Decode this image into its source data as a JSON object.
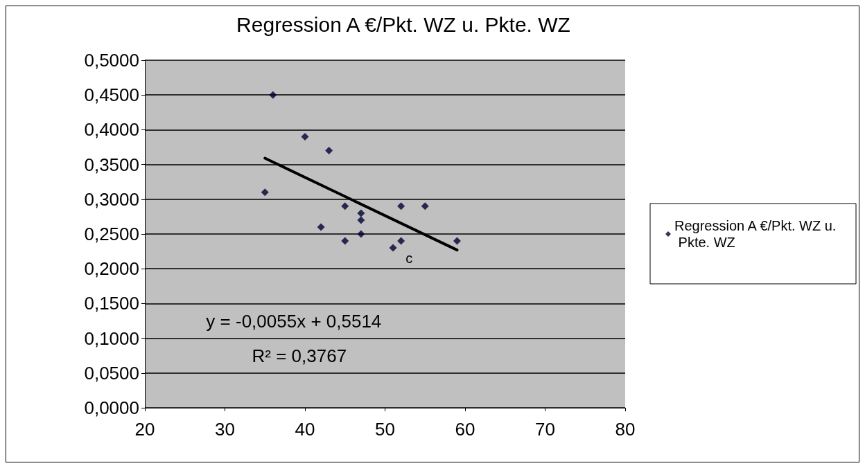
{
  "chart_data": {
    "type": "scatter",
    "title": "Regression A €/Pkt. WZ u. Pkte. WZ",
    "series": [
      {
        "name": "Regression A €/Pkt. WZ u. Pkte. WZ",
        "color": "#000033",
        "marker": "diamond",
        "x": [
          36,
          40,
          43,
          35,
          45,
          52,
          55,
          47,
          47,
          42,
          47,
          45,
          52,
          51,
          59
        ],
        "values": [
          0.45,
          0.39,
          0.37,
          0.31,
          0.29,
          0.29,
          0.29,
          0.28,
          0.27,
          0.26,
          0.25,
          0.24,
          0.24,
          0.23,
          0.24
        ]
      },
      {
        "type": "line",
        "color": "#000000",
        "x": [
          35,
          59
        ],
        "values": [
          0.359,
          0.227
        ]
      }
    ],
    "xlim": [
      20,
      80
    ],
    "xticks": [
      20,
      30,
      40,
      50,
      60,
      70,
      80
    ],
    "ylim": [
      0,
      0.5
    ],
    "yticks": [
      {
        "value": 0,
        "label": "0,0000"
      },
      {
        "value": 0.05,
        "label": "0,0500"
      },
      {
        "value": 0.1,
        "label": "0,1000"
      },
      {
        "value": 0.15,
        "label": "0,1500"
      },
      {
        "value": 0.2,
        "label": "0,2000"
      },
      {
        "value": 0.25,
        "label": "0,2500"
      },
      {
        "value": 0.3,
        "label": "0,3000"
      },
      {
        "value": 0.35,
        "label": "0,3500"
      },
      {
        "value": 0.4,
        "label": "0,4000"
      },
      {
        "value": 0.45,
        "label": "0,4500"
      },
      {
        "value": 0.5,
        "label": "0,5000"
      }
    ],
    "grid": "y",
    "legend": "right",
    "annotations": [
      "y = -0,0055x + 0,5514",
      "R² = 0,3767",
      "c"
    ]
  }
}
